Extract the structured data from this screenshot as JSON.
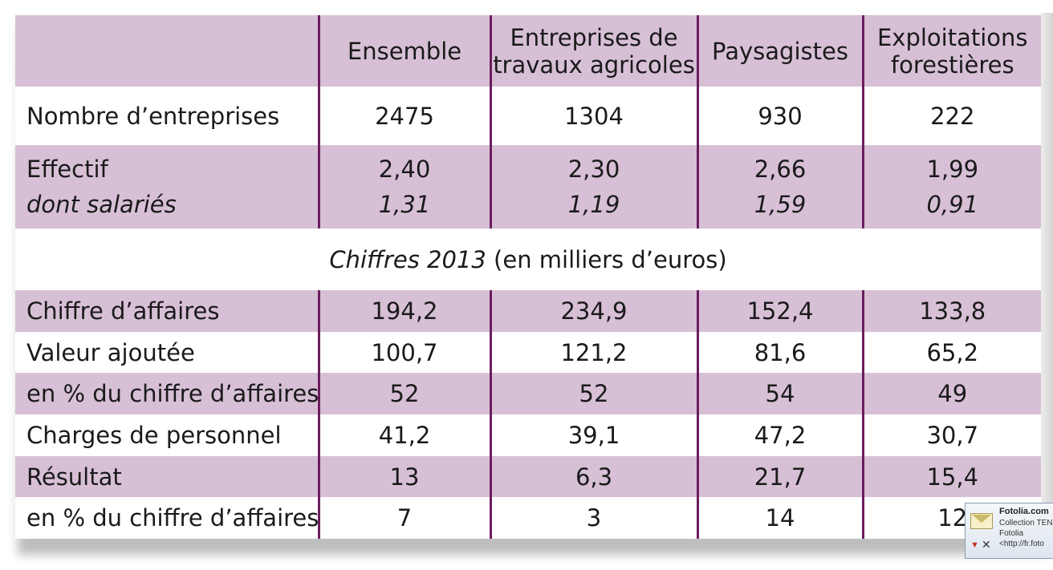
{
  "headers": {
    "corner": "",
    "ensemble": "Ensemble",
    "eta_line1": "Entreprises de",
    "eta_line2": "travaux agricoles",
    "paysagistes": "Paysagistes",
    "ef_line1": "Exploitations",
    "ef_line2": "forestières"
  },
  "rows": {
    "nombre": {
      "label": "Nombre d’entreprises",
      "values": [
        "2475",
        "1304",
        "930",
        "222"
      ]
    },
    "effectif": {
      "label": "Effectif",
      "sublabel": "dont salariés",
      "values": [
        "2,40",
        "2,30",
        "2,66",
        "1,99"
      ],
      "subvalues": [
        "1,31",
        "1,19",
        "1,59",
        "0,91"
      ]
    },
    "ca": {
      "label": "Chiffre d’affaires",
      "values": [
        "194,2",
        "234,9",
        "152,4",
        "133,8"
      ]
    },
    "va": {
      "label": "Valeur ajoutée",
      "values": [
        "100,7",
        "121,2",
        "81,6",
        "65,2"
      ]
    },
    "va_pct": {
      "label": "en % du chiffre d’affaires",
      "values": [
        "52",
        "52",
        "54",
        "49"
      ]
    },
    "charges": {
      "label": "Charges de personnel",
      "values": [
        "41,2",
        "39,1",
        "47,2",
        "30,7"
      ]
    },
    "resultat": {
      "label": "Résultat",
      "values": [
        "13",
        "6,3",
        "21,7",
        "15,4"
      ]
    },
    "res_pct": {
      "label": "en % du chiffre d’affaires",
      "values": [
        "7",
        "3",
        "14",
        "12"
      ]
    }
  },
  "section": {
    "title_italic": "Chiffres 2013",
    "title_rest": "(en milliers d’euros)"
  },
  "notification": {
    "title": "Fotolia.com",
    "line1": "Collection TEN",
    "line2": "Fotolia",
    "line3": "<http://fr.foto",
    "icon": "envelope-icon",
    "close_icon": "close-icon"
  },
  "colors": {
    "shade": "#d7c0d6",
    "divider": "#6b1d5e"
  }
}
